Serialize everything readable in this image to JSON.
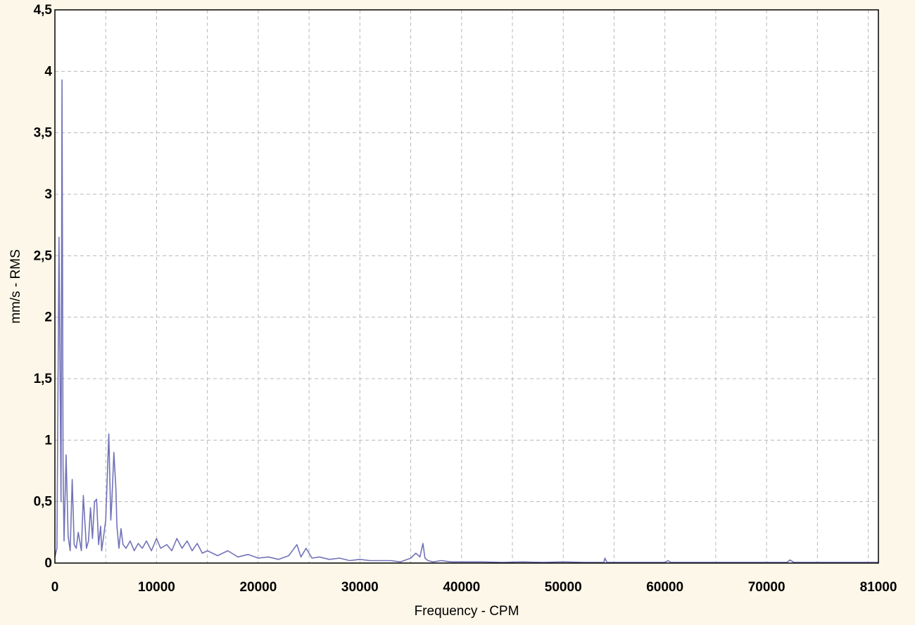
{
  "chart_data": {
    "type": "line",
    "title": "",
    "xlabel": "Frequency - CPM",
    "ylabel": "mm/s - RMS",
    "xlim": [
      0,
      81000
    ],
    "ylim": [
      0,
      4.5
    ],
    "x_ticks": [
      0,
      10000,
      20000,
      30000,
      40000,
      50000,
      60000,
      70000,
      81000
    ],
    "x_tick_labels": [
      "0",
      "10000",
      "20000",
      "30000",
      "40000",
      "50000",
      "60000",
      "70000",
      "81000"
    ],
    "y_ticks": [
      0,
      0.5,
      1,
      1.5,
      2,
      2.5,
      3,
      3.5,
      4,
      4.5
    ],
    "y_tick_labels": [
      "0",
      "0,5",
      "1",
      "1,5",
      "2",
      "2,5",
      "3",
      "3,5",
      "4",
      "4,5"
    ],
    "grid": true,
    "legend": "none",
    "series": [
      {
        "color": "#7272b8",
        "x": [
          0,
          200,
          400,
          600,
          700,
          800,
          900,
          1100,
          1300,
          1500,
          1700,
          1900,
          2100,
          2300,
          2600,
          2800,
          3100,
          3300,
          3500,
          3700,
          3900,
          4100,
          4300,
          4500,
          4600,
          4800,
          5000,
          5300,
          5500,
          5600,
          5800,
          6000,
          6100,
          6300,
          6500,
          6700,
          7000,
          7400,
          7800,
          8200,
          8600,
          9000,
          9500,
          10000,
          10400,
          11000,
          11500,
          12000,
          12500,
          13000,
          13500,
          14000,
          14500,
          15000,
          16000,
          17000,
          18000,
          19000,
          20000,
          21000,
          22000,
          23000,
          23800,
          24200,
          24700,
          25300,
          26000,
          27000,
          28000,
          29000,
          30000,
          31000,
          32000,
          33000,
          34000,
          35000,
          35500,
          35900,
          36200,
          36400,
          36700,
          37200,
          38000,
          39000,
          40000,
          42000,
          44000,
          46000,
          48000,
          50000,
          52000,
          54000,
          54100,
          54300,
          56000,
          58000,
          60000,
          60300,
          60600,
          62000,
          64000,
          66000,
          68000,
          70000,
          72000,
          72300,
          72700,
          74000,
          76000,
          78000,
          81000
        ],
        "y": [
          0.05,
          0.12,
          2.65,
          0.5,
          3.93,
          0.8,
          0.18,
          0.88,
          0.22,
          0.1,
          0.68,
          0.15,
          0.12,
          0.25,
          0.1,
          0.55,
          0.12,
          0.18,
          0.45,
          0.2,
          0.5,
          0.52,
          0.15,
          0.3,
          0.1,
          0.22,
          0.35,
          1.05,
          0.35,
          0.5,
          0.9,
          0.6,
          0.3,
          0.12,
          0.28,
          0.15,
          0.12,
          0.18,
          0.1,
          0.16,
          0.12,
          0.18,
          0.1,
          0.2,
          0.12,
          0.15,
          0.1,
          0.2,
          0.12,
          0.18,
          0.1,
          0.16,
          0.08,
          0.1,
          0.06,
          0.1,
          0.05,
          0.07,
          0.04,
          0.05,
          0.03,
          0.06,
          0.15,
          0.05,
          0.12,
          0.04,
          0.05,
          0.03,
          0.04,
          0.02,
          0.03,
          0.02,
          0.02,
          0.02,
          0.01,
          0.04,
          0.08,
          0.05,
          0.16,
          0.04,
          0.02,
          0.01,
          0.02,
          0.01,
          0.01,
          0.01,
          0.005,
          0.01,
          0.005,
          0.01,
          0.005,
          0.005,
          0.04,
          0.005,
          0.005,
          0.005,
          0.005,
          0.02,
          0.005,
          0.005,
          0.005,
          0.005,
          0.005,
          0.005,
          0.005,
          0.025,
          0.005,
          0.005,
          0.005,
          0.005,
          0.005
        ]
      }
    ]
  }
}
